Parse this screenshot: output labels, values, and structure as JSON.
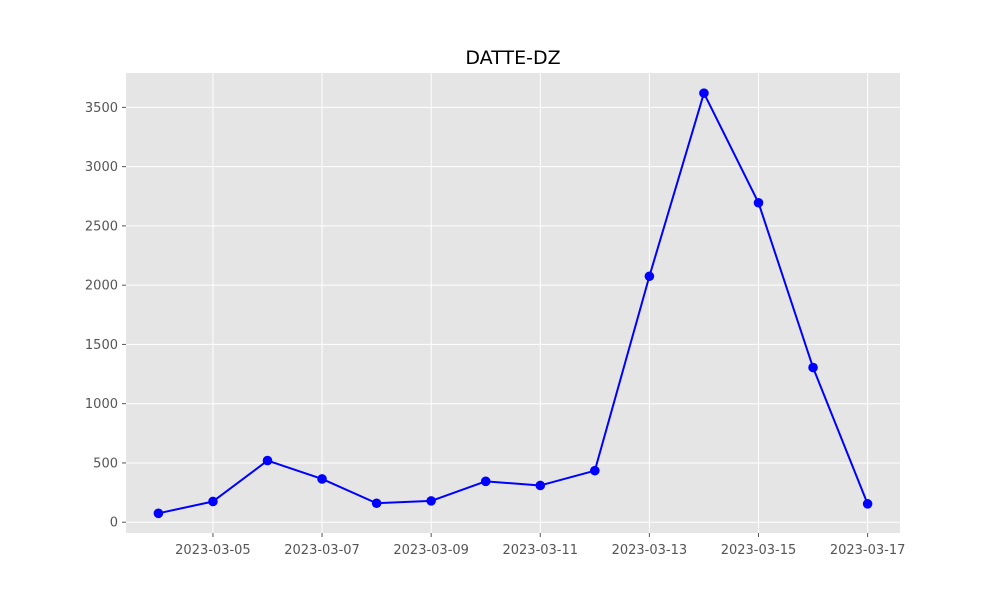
{
  "chart_data": {
    "type": "line",
    "title": "DATTE-DZ",
    "xlabel": "",
    "ylabel": "",
    "x": [
      "2023-03-04",
      "2023-03-05",
      "2023-03-06",
      "2023-03-07",
      "2023-03-08",
      "2023-03-09",
      "2023-03-10",
      "2023-03-11",
      "2023-03-12",
      "2023-03-13",
      "2023-03-14",
      "2023-03-15",
      "2023-03-16",
      "2023-03-17"
    ],
    "series": [
      {
        "values": [
          75,
          175,
          520,
          365,
          160,
          180,
          345,
          310,
          435,
          2075,
          3620,
          2695,
          1305,
          155
        ]
      }
    ],
    "x_ticks": [
      "2023-03-05",
      "2023-03-07",
      "2023-03-09",
      "2023-03-11",
      "2023-03-13",
      "2023-03-15",
      "2023-03-17"
    ],
    "y_ticks": [
      0,
      500,
      1000,
      1500,
      2000,
      2500,
      3000,
      3500
    ],
    "xlim": [
      "2023-03-03T09:45",
      "2023-03-17T14:15"
    ],
    "ylim": [
      -91,
      3790
    ],
    "grid": true,
    "legend": "none",
    "colors": {
      "line": "#0000ff",
      "marker": "#0000ff",
      "background": "#e5e5e5",
      "grid": "#ffffff"
    }
  }
}
